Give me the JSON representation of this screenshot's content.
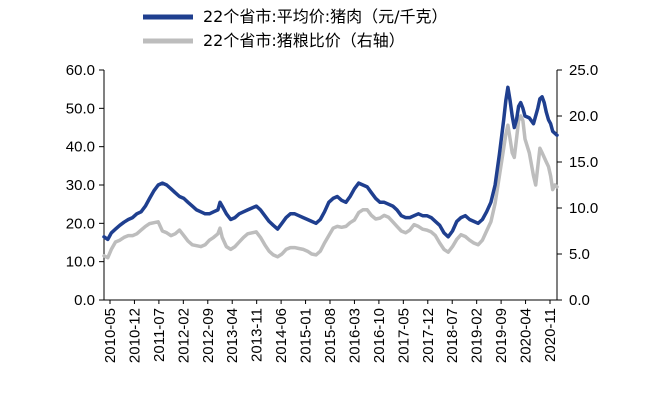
{
  "chart_data": {
    "type": "line",
    "title": "",
    "xlabel": "",
    "ylabel": "",
    "legend": [
      {
        "label": "22个省市:平均价:猪肉（元/千克）",
        "color": "#1f3f8f",
        "axis": "left"
      },
      {
        "label": "22个省市:猪粮比价（右轴）",
        "color": "#bdbdbd",
        "axis": "right"
      }
    ],
    "x_ticks": [
      "2010-05",
      "2010-12",
      "2011-07",
      "2012-02",
      "2012-09",
      "2013-04",
      "2013-11",
      "2014-06",
      "2015-01",
      "2015-08",
      "2016-03",
      "2016-10",
      "2017-05",
      "2017-12",
      "2018-07",
      "2019-02",
      "2019-09",
      "2020-04",
      "2020-11"
    ],
    "x_range": [
      2010.33,
      2020.95
    ],
    "y_left": {
      "range": [
        0,
        60
      ],
      "ticks": [
        "0.0",
        "10.0",
        "20.0",
        "30.0",
        "40.0",
        "50.0",
        "60.0"
      ]
    },
    "y_right": {
      "range": [
        0,
        25
      ],
      "ticks": [
        "0.0",
        "5.0",
        "10.0",
        "15.0",
        "20.0",
        "25.0"
      ]
    },
    "series": [
      {
        "name": "22个省市:平均价:猪肉（元/千克）",
        "axis": "left",
        "color": "#1f3f8f",
        "points": [
          [
            2010.33,
            16.5
          ],
          [
            2010.42,
            15.8
          ],
          [
            2010.5,
            17.5
          ],
          [
            2010.6,
            18.5
          ],
          [
            2010.7,
            19.5
          ],
          [
            2010.8,
            20.3
          ],
          [
            2010.9,
            21.0
          ],
          [
            2011.0,
            21.5
          ],
          [
            2011.1,
            22.5
          ],
          [
            2011.2,
            23.0
          ],
          [
            2011.3,
            24.5
          ],
          [
            2011.4,
            26.5
          ],
          [
            2011.5,
            28.5
          ],
          [
            2011.6,
            30.0
          ],
          [
            2011.7,
            30.5
          ],
          [
            2011.8,
            30.0
          ],
          [
            2011.9,
            29.0
          ],
          [
            2012.0,
            28.0
          ],
          [
            2012.1,
            27.0
          ],
          [
            2012.2,
            26.5
          ],
          [
            2012.3,
            25.5
          ],
          [
            2012.4,
            24.5
          ],
          [
            2012.5,
            23.5
          ],
          [
            2012.6,
            23.0
          ],
          [
            2012.7,
            22.5
          ],
          [
            2012.8,
            22.5
          ],
          [
            2012.9,
            23.0
          ],
          [
            2013.0,
            23.5
          ],
          [
            2013.05,
            25.5
          ],
          [
            2013.1,
            24.5
          ],
          [
            2013.2,
            22.5
          ],
          [
            2013.3,
            21.0
          ],
          [
            2013.4,
            21.5
          ],
          [
            2013.5,
            22.5
          ],
          [
            2013.6,
            23.0
          ],
          [
            2013.7,
            23.5
          ],
          [
            2013.8,
            24.0
          ],
          [
            2013.9,
            24.5
          ],
          [
            2014.0,
            23.5
          ],
          [
            2014.1,
            22.0
          ],
          [
            2014.2,
            20.5
          ],
          [
            2014.3,
            19.5
          ],
          [
            2014.4,
            18.5
          ],
          [
            2014.5,
            20.0
          ],
          [
            2014.6,
            21.5
          ],
          [
            2014.7,
            22.5
          ],
          [
            2014.8,
            22.5
          ],
          [
            2014.9,
            22.0
          ],
          [
            2015.0,
            21.5
          ],
          [
            2015.1,
            21.0
          ],
          [
            2015.2,
            20.5
          ],
          [
            2015.3,
            20.0
          ],
          [
            2015.4,
            21.0
          ],
          [
            2015.5,
            23.0
          ],
          [
            2015.6,
            25.5
          ],
          [
            2015.7,
            26.5
          ],
          [
            2015.8,
            27.0
          ],
          [
            2015.9,
            26.0
          ],
          [
            2016.0,
            25.5
          ],
          [
            2016.1,
            27.0
          ],
          [
            2016.2,
            29.0
          ],
          [
            2016.3,
            30.5
          ],
          [
            2016.4,
            30.0
          ],
          [
            2016.5,
            29.5
          ],
          [
            2016.6,
            28.0
          ],
          [
            2016.7,
            26.5
          ],
          [
            2016.8,
            25.5
          ],
          [
            2016.9,
            25.5
          ],
          [
            2017.0,
            25.0
          ],
          [
            2017.1,
            24.5
          ],
          [
            2017.2,
            23.5
          ],
          [
            2017.3,
            22.0
          ],
          [
            2017.4,
            21.5
          ],
          [
            2017.5,
            21.5
          ],
          [
            2017.6,
            22.0
          ],
          [
            2017.7,
            22.5
          ],
          [
            2017.8,
            22.0
          ],
          [
            2017.9,
            22.0
          ],
          [
            2018.0,
            21.5
          ],
          [
            2018.1,
            20.5
          ],
          [
            2018.2,
            19.5
          ],
          [
            2018.3,
            17.5
          ],
          [
            2018.4,
            16.5
          ],
          [
            2018.5,
            18.0
          ],
          [
            2018.6,
            20.5
          ],
          [
            2018.7,
            21.5
          ],
          [
            2018.8,
            22.0
          ],
          [
            2018.9,
            21.0
          ],
          [
            2019.0,
            20.5
          ],
          [
            2019.1,
            20.0
          ],
          [
            2019.2,
            21.0
          ],
          [
            2019.3,
            23.0
          ],
          [
            2019.4,
            25.5
          ],
          [
            2019.5,
            30.0
          ],
          [
            2019.6,
            38.0
          ],
          [
            2019.7,
            47.0
          ],
          [
            2019.75,
            52.0
          ],
          [
            2019.8,
            55.5
          ],
          [
            2019.85,
            52.0
          ],
          [
            2019.9,
            48.0
          ],
          [
            2019.95,
            45.0
          ],
          [
            2020.0,
            47.0
          ],
          [
            2020.05,
            50.5
          ],
          [
            2020.1,
            51.5
          ],
          [
            2020.15,
            50.0
          ],
          [
            2020.2,
            48.0
          ],
          [
            2020.3,
            47.5
          ],
          [
            2020.4,
            46.0
          ],
          [
            2020.5,
            50.0
          ],
          [
            2020.55,
            52.5
          ],
          [
            2020.6,
            53.0
          ],
          [
            2020.65,
            51.5
          ],
          [
            2020.7,
            49.0
          ],
          [
            2020.75,
            47.0
          ],
          [
            2020.8,
            46.0
          ],
          [
            2020.85,
            44.0
          ],
          [
            2020.9,
            43.5
          ],
          [
            2020.95,
            43.0
          ]
        ]
      },
      {
        "name": "22个省市:猪粮比价（右轴）",
        "axis": "right",
        "color": "#bdbdbd",
        "points": [
          [
            2010.33,
            4.8
          ],
          [
            2010.42,
            4.6
          ],
          [
            2010.5,
            5.5
          ],
          [
            2010.6,
            6.3
          ],
          [
            2010.7,
            6.5
          ],
          [
            2010.8,
            6.8
          ],
          [
            2010.9,
            7.0
          ],
          [
            2011.0,
            7.0
          ],
          [
            2011.1,
            7.2
          ],
          [
            2011.2,
            7.6
          ],
          [
            2011.3,
            8.0
          ],
          [
            2011.4,
            8.3
          ],
          [
            2011.5,
            8.4
          ],
          [
            2011.6,
            8.5
          ],
          [
            2011.7,
            7.5
          ],
          [
            2011.8,
            7.3
          ],
          [
            2011.9,
            7.0
          ],
          [
            2012.0,
            7.2
          ],
          [
            2012.1,
            7.6
          ],
          [
            2012.2,
            7.0
          ],
          [
            2012.3,
            6.4
          ],
          [
            2012.4,
            6.0
          ],
          [
            2012.5,
            5.9
          ],
          [
            2012.6,
            5.8
          ],
          [
            2012.7,
            6.0
          ],
          [
            2012.8,
            6.5
          ],
          [
            2012.9,
            6.8
          ],
          [
            2013.0,
            7.2
          ],
          [
            2013.05,
            7.8
          ],
          [
            2013.1,
            6.8
          ],
          [
            2013.2,
            5.8
          ],
          [
            2013.3,
            5.5
          ],
          [
            2013.4,
            5.8
          ],
          [
            2013.5,
            6.3
          ],
          [
            2013.6,
            6.8
          ],
          [
            2013.7,
            7.2
          ],
          [
            2013.8,
            7.3
          ],
          [
            2013.9,
            7.4
          ],
          [
            2014.0,
            6.8
          ],
          [
            2014.1,
            6.0
          ],
          [
            2014.2,
            5.3
          ],
          [
            2014.3,
            4.9
          ],
          [
            2014.4,
            4.7
          ],
          [
            2014.5,
            5.0
          ],
          [
            2014.6,
            5.5
          ],
          [
            2014.7,
            5.7
          ],
          [
            2014.8,
            5.7
          ],
          [
            2014.9,
            5.6
          ],
          [
            2015.0,
            5.5
          ],
          [
            2015.1,
            5.3
          ],
          [
            2015.2,
            5.0
          ],
          [
            2015.3,
            4.9
          ],
          [
            2015.4,
            5.3
          ],
          [
            2015.5,
            6.2
          ],
          [
            2015.6,
            7.0
          ],
          [
            2015.7,
            7.8
          ],
          [
            2015.8,
            8.0
          ],
          [
            2015.9,
            7.9
          ],
          [
            2016.0,
            8.0
          ],
          [
            2016.1,
            8.4
          ],
          [
            2016.2,
            8.7
          ],
          [
            2016.3,
            9.5
          ],
          [
            2016.4,
            9.8
          ],
          [
            2016.5,
            9.8
          ],
          [
            2016.6,
            9.2
          ],
          [
            2016.7,
            8.8
          ],
          [
            2016.8,
            8.9
          ],
          [
            2016.9,
            9.2
          ],
          [
            2017.0,
            9.0
          ],
          [
            2017.1,
            8.5
          ],
          [
            2017.2,
            8.0
          ],
          [
            2017.3,
            7.5
          ],
          [
            2017.4,
            7.3
          ],
          [
            2017.5,
            7.6
          ],
          [
            2017.6,
            8.2
          ],
          [
            2017.7,
            8.0
          ],
          [
            2017.8,
            7.7
          ],
          [
            2017.9,
            7.6
          ],
          [
            2018.0,
            7.4
          ],
          [
            2018.1,
            7.0
          ],
          [
            2018.2,
            6.2
          ],
          [
            2018.3,
            5.5
          ],
          [
            2018.4,
            5.2
          ],
          [
            2018.5,
            5.8
          ],
          [
            2018.6,
            6.6
          ],
          [
            2018.7,
            7.1
          ],
          [
            2018.8,
            6.9
          ],
          [
            2018.9,
            6.5
          ],
          [
            2019.0,
            6.2
          ],
          [
            2019.1,
            6.0
          ],
          [
            2019.2,
            6.5
          ],
          [
            2019.3,
            7.5
          ],
          [
            2019.4,
            8.5
          ],
          [
            2019.5,
            10.5
          ],
          [
            2019.6,
            13.5
          ],
          [
            2019.7,
            16.5
          ],
          [
            2019.75,
            18.0
          ],
          [
            2019.8,
            19.0
          ],
          [
            2019.85,
            17.5
          ],
          [
            2019.9,
            16.0
          ],
          [
            2019.95,
            15.5
          ],
          [
            2020.0,
            17.5
          ],
          [
            2020.05,
            19.5
          ],
          [
            2020.1,
            20.0
          ],
          [
            2020.15,
            19.5
          ],
          [
            2020.2,
            17.5
          ],
          [
            2020.3,
            16.0
          ],
          [
            2020.4,
            13.5
          ],
          [
            2020.45,
            12.5
          ],
          [
            2020.5,
            14.5
          ],
          [
            2020.55,
            16.5
          ],
          [
            2020.6,
            16.0
          ],
          [
            2020.65,
            15.5
          ],
          [
            2020.7,
            15.0
          ],
          [
            2020.75,
            14.5
          ],
          [
            2020.8,
            13.5
          ],
          [
            2020.85,
            12.0
          ],
          [
            2020.9,
            12.5
          ],
          [
            2020.95,
            12.3
          ]
        ]
      }
    ]
  }
}
